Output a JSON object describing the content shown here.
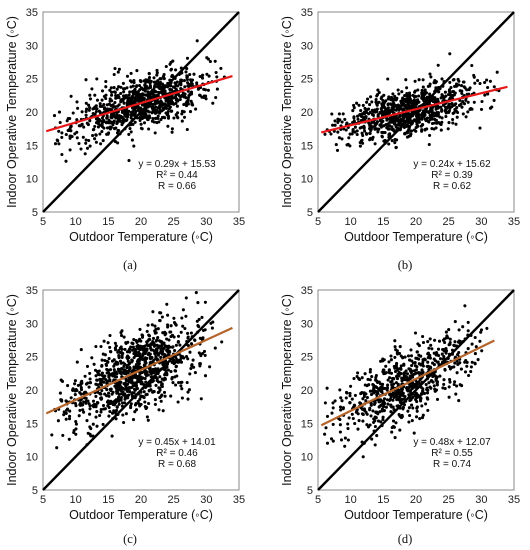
{
  "chart_data": [
    {
      "id": "a",
      "type": "scatter",
      "caption": "(a)",
      "xlabel": "Outdoor Temperature (◦C)",
      "ylabel": "Indoor Operative Temperature (◦C)",
      "xlim": [
        5,
        35
      ],
      "ylim": [
        5,
        35
      ],
      "xticks": [
        "5",
        "10",
        "15",
        "20",
        "25",
        "30",
        "35"
      ],
      "yticks": [
        "5",
        "10",
        "15",
        "20",
        "25",
        "30",
        "35"
      ],
      "grid": false,
      "reference_line": {
        "slope": 1,
        "intercept": 0,
        "color": "#000000"
      },
      "fit": {
        "slope": 0.29,
        "intercept": 15.53,
        "x_range": [
          5.5,
          34
        ],
        "color": "#e8191a"
      },
      "annotations": [
        "y = 0.29x + 15.53",
        "R² = 0.44",
        "R = 0.66"
      ],
      "scatter_model": {
        "x_range": [
          6,
          33
        ],
        "x_center": 20,
        "spread": 2.0,
        "count": 900
      }
    },
    {
      "id": "b",
      "type": "scatter",
      "caption": "(b)",
      "xlabel": "Outdoor Temperature (◦C)",
      "ylabel": "Indoor Operative Temperature (◦C)",
      "xlim": [
        5,
        35
      ],
      "ylim": [
        5,
        35
      ],
      "xticks": [
        "5",
        "10",
        "15",
        "20",
        "25",
        "30",
        "35"
      ],
      "yticks": [
        "5",
        "10",
        "15",
        "20",
        "25",
        "30",
        "35"
      ],
      "grid": false,
      "reference_line": {
        "slope": 1,
        "intercept": 0,
        "color": "#000000"
      },
      "fit": {
        "slope": 0.24,
        "intercept": 15.62,
        "x_range": [
          5.5,
          34
        ],
        "color": "#e8191a"
      },
      "annotations": [
        "y = 0.24x + 15.62",
        "R² = 0.39",
        "R = 0.62"
      ],
      "scatter_model": {
        "x_range": [
          6,
          33
        ],
        "x_center": 19,
        "spread": 1.8,
        "count": 900
      }
    },
    {
      "id": "c",
      "type": "scatter",
      "caption": "(c)",
      "xlabel": "Outdoor Temperature (◦C)",
      "ylabel": "Indoor Operative Temperature (◦C)",
      "xlim": [
        5,
        35
      ],
      "ylim": [
        5,
        35
      ],
      "xticks": [
        "5",
        "10",
        "15",
        "20",
        "25",
        "30",
        "35"
      ],
      "yticks": [
        "5",
        "10",
        "15",
        "20",
        "25",
        "30",
        "35"
      ],
      "grid": false,
      "reference_line": {
        "slope": 1,
        "intercept": 0,
        "color": "#000000"
      },
      "fit": {
        "slope": 0.45,
        "intercept": 14.01,
        "x_range": [
          5.5,
          34
        ],
        "color": "#b5652b"
      },
      "annotations": [
        "y = 0.45x + 14.01",
        "R² = 0.46",
        "R = 0.68"
      ],
      "scatter_model": {
        "x_range": [
          6,
          33
        ],
        "x_center": 19,
        "spread": 3.0,
        "count": 1000
      }
    },
    {
      "id": "d",
      "type": "scatter",
      "caption": "(d)",
      "xlabel": "Outdoor Temperature (◦C)",
      "ylabel": "Indoor Operative Temperature (◦C)",
      "xlim": [
        5,
        35
      ],
      "ylim": [
        5,
        35
      ],
      "xticks": [
        "5",
        "10",
        "15",
        "20",
        "25",
        "30",
        "35"
      ],
      "yticks": [
        "5",
        "10",
        "15",
        "20",
        "25",
        "30",
        "35"
      ],
      "grid": false,
      "reference_line": {
        "slope": 1,
        "intercept": 0,
        "color": "#000000"
      },
      "fit": {
        "slope": 0.48,
        "intercept": 12.07,
        "x_range": [
          5.5,
          32
        ],
        "color": "#b5652b"
      },
      "annotations": [
        "y = 0.48x + 12.07",
        "R² = 0.55",
        "R = 0.74"
      ],
      "scatter_model": {
        "x_range": [
          6,
          31
        ],
        "x_center": 18,
        "spread": 2.6,
        "count": 700
      }
    }
  ]
}
